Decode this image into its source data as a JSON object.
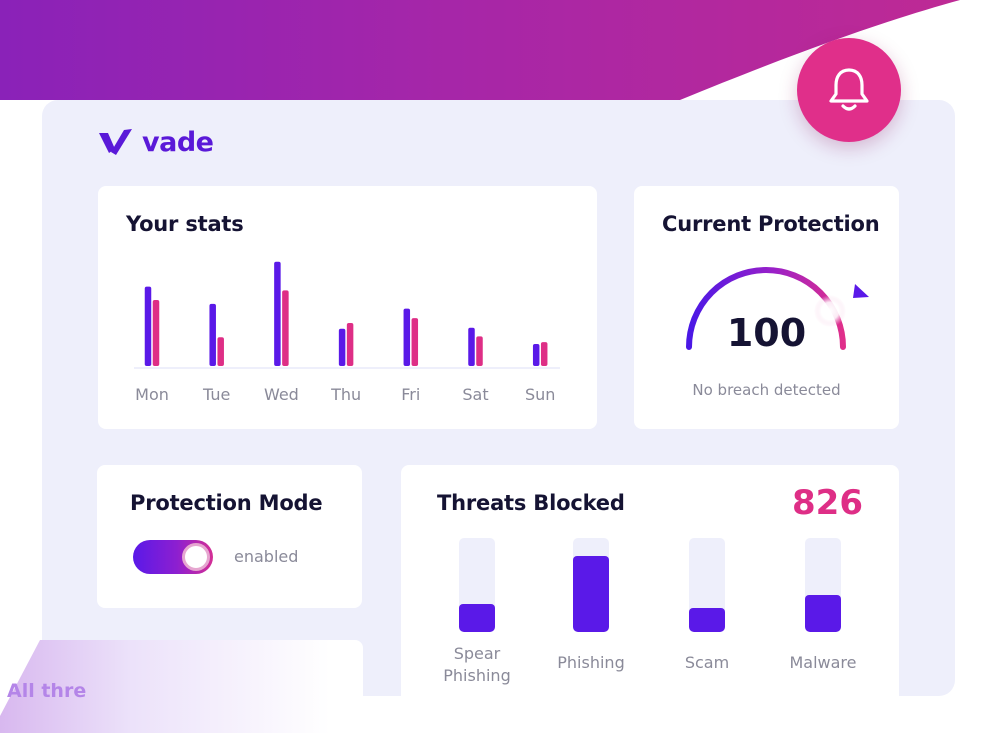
{
  "brand": {
    "name": "vade",
    "logo_color": "#5a19d8"
  },
  "colors": {
    "primary": "#5a19e8",
    "accent": "#de2e86",
    "panel": "#eeeffb"
  },
  "notification": {
    "icon": "bell-icon"
  },
  "stats": {
    "title": "Your stats",
    "chart_data": {
      "type": "bar",
      "categories": [
        "Mon",
        "Tue",
        "Wed",
        "Thu",
        "Fri",
        "Sat",
        "Sun"
      ],
      "series": [
        {
          "color": "#5a19e8",
          "values": [
            83,
            65,
            109,
            39,
            60,
            40,
            23
          ]
        },
        {
          "color": "#de2e86",
          "values": [
            69,
            30,
            79,
            45,
            50,
            31,
            25
          ]
        }
      ],
      "ylim": [
        0,
        115
      ],
      "grid": false
    }
  },
  "protection": {
    "title": "Current Protection",
    "value": "100",
    "status": "No breach detected",
    "gauge_level": 0.92
  },
  "mode": {
    "title": "Protection Mode",
    "state": "enabled",
    "toggle_on": true
  },
  "threats": {
    "title": "Threats Blocked",
    "total": "826",
    "categories": [
      {
        "label": "Spear Phishing",
        "level": 0.3
      },
      {
        "label": "Phishing",
        "level": 0.81
      },
      {
        "label": "Scam",
        "level": 0.26
      },
      {
        "label": "Malware",
        "level": 0.39
      }
    ]
  },
  "footer_snippet": "All thre"
}
